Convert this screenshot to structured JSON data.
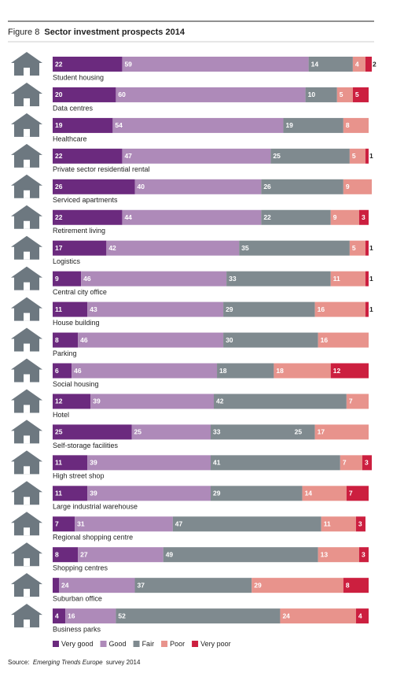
{
  "figure_label": "Figure 8",
  "source": {
    "prefix": "Source:",
    "italic": "Emerging Trends Europe",
    "suffix": "survey 2014"
  },
  "chart_data": {
    "type": "bar",
    "orientation": "horizontal",
    "stacked": true,
    "title": "Sector investment prospects 2014",
    "xlim": [
      0,
      100
    ],
    "categories": [
      "Student housing",
      "Data centres",
      "Healthcare",
      "Private sector residential rental",
      "Serviced apartments",
      "Retirement living",
      "Logistics",
      "Central city office",
      "House building",
      "Parking",
      "Social housing",
      "Hotel",
      "Self-storage facilities",
      "High street shop",
      "Large industrial warehouse",
      "Regional shopping centre",
      "Shopping centres",
      "Suburban office",
      "Business parks"
    ],
    "series": [
      {
        "name": "Very good",
        "color": "#6b2a7e",
        "values": [
          22,
          20,
          19,
          22,
          26,
          22,
          17,
          9,
          11,
          8,
          6,
          12,
          25,
          11,
          11,
          7,
          8,
          2,
          4
        ]
      },
      {
        "name": "Good",
        "color": "#ae8ab9",
        "values": [
          59,
          60,
          54,
          47,
          40,
          44,
          42,
          46,
          43,
          46,
          46,
          39,
          25,
          39,
          39,
          31,
          27,
          24,
          16
        ]
      },
      {
        "name": "Fair",
        "color": "#7f8a8f",
        "values": [
          14,
          10,
          19,
          25,
          26,
          22,
          35,
          33,
          29,
          30,
          18,
          42,
          33,
          41,
          29,
          47,
          49,
          37,
          52
        ]
      },
      {
        "name": "Poor",
        "color": "#e8938c",
        "values": [
          4,
          5,
          8,
          5,
          9,
          9,
          5,
          11,
          16,
          16,
          18,
          7,
          17,
          7,
          14,
          11,
          13,
          29,
          24
        ]
      },
      {
        "name": "Very poor",
        "color": "#cc1f3f",
        "values": [
          2,
          5,
          null,
          1,
          null,
          3,
          1,
          1,
          1,
          null,
          12,
          null,
          null,
          3,
          7,
          3,
          3,
          8,
          4
        ]
      }
    ],
    "annotations": [
      {
        "text": "25",
        "row": 12,
        "series": 2
      }
    ],
    "legend": "bottom"
  }
}
